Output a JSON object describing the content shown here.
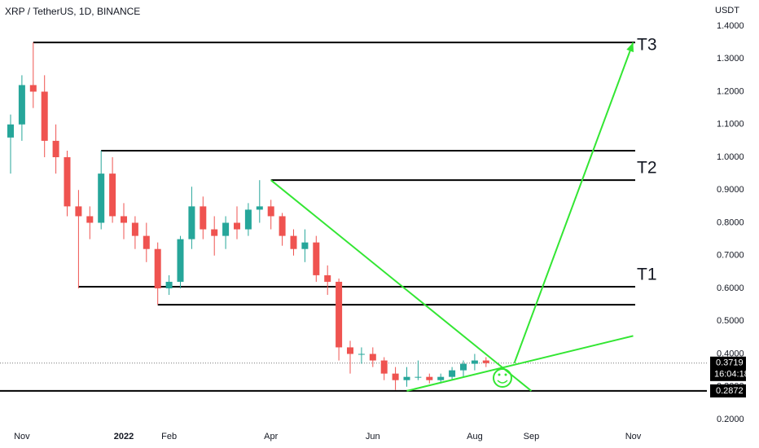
{
  "chart_data": {
    "type": "candlestick",
    "title": "XRP / TetherUS, 1D, BINANCE",
    "y_axis_title": "USDT",
    "categories": [
      null,
      "Nov",
      null,
      null,
      null,
      null,
      null,
      null,
      null,
      null,
      "2022",
      null,
      null,
      null,
      "Feb",
      null,
      null,
      null,
      null,
      null,
      null,
      null,
      null,
      "Apr",
      null,
      null,
      null,
      null,
      null,
      null,
      null,
      null,
      "Jun",
      null,
      null,
      null,
      null,
      null,
      null,
      null,
      null,
      "Aug",
      null,
      null,
      null,
      null,
      "Sep",
      null,
      null,
      null,
      null,
      null,
      null,
      null,
      null,
      "Nov",
      null,
      null,
      null,
      null,
      null
    ],
    "open": [
      1.06,
      1.1,
      1.22,
      1.2,
      1.05,
      1.0,
      0.85,
      0.82,
      0.8,
      0.95,
      0.82,
      0.8,
      0.76,
      0.72,
      0.6,
      0.62,
      0.75,
      0.85,
      0.78,
      0.76,
      0.8,
      0.78,
      0.84,
      0.85,
      0.82,
      0.76,
      0.72,
      0.74,
      0.64,
      0.62,
      0.42,
      0.4,
      0.4,
      0.38,
      0.34,
      0.32,
      0.33,
      0.33,
      0.32,
      0.33,
      0.35,
      0.37,
      0.38,
      null,
      null,
      null,
      null,
      null,
      null,
      null,
      null,
      null,
      null,
      null,
      null,
      null,
      null,
      null,
      null,
      null,
      null
    ],
    "high": [
      1.13,
      1.25,
      1.35,
      1.25,
      1.1,
      1.02,
      0.9,
      0.85,
      1.02,
      1.0,
      0.86,
      0.82,
      0.8,
      0.74,
      0.64,
      0.76,
      0.91,
      0.88,
      0.82,
      0.82,
      0.85,
      0.86,
      0.93,
      0.87,
      0.83,
      0.78,
      0.78,
      0.76,
      0.67,
      0.63,
      0.44,
      0.42,
      0.42,
      0.39,
      0.36,
      0.36,
      0.38,
      0.34,
      0.34,
      0.36,
      0.38,
      0.4,
      0.39,
      null,
      null,
      null,
      null,
      null,
      null,
      null,
      null,
      null,
      null,
      null,
      null,
      null,
      null,
      null,
      null,
      null,
      null
    ],
    "low": [
      0.95,
      1.05,
      1.15,
      1.0,
      0.95,
      0.82,
      0.6,
      0.75,
      0.78,
      0.8,
      0.75,
      0.72,
      0.68,
      0.55,
      0.58,
      0.6,
      0.72,
      0.75,
      0.7,
      0.72,
      0.75,
      0.76,
      0.8,
      0.78,
      0.73,
      0.7,
      0.68,
      0.62,
      0.58,
      0.38,
      0.34,
      0.37,
      0.36,
      0.32,
      0.29,
      0.3,
      0.32,
      0.31,
      0.31,
      0.32,
      0.33,
      0.35,
      0.36,
      null,
      null,
      null,
      null,
      null,
      null,
      null,
      null,
      null,
      null,
      null,
      null,
      null,
      null,
      null,
      null,
      null,
      null
    ],
    "close": [
      1.1,
      1.22,
      1.2,
      1.05,
      1.0,
      0.85,
      0.82,
      0.8,
      0.95,
      0.82,
      0.8,
      0.76,
      0.72,
      0.6,
      0.62,
      0.75,
      0.85,
      0.78,
      0.76,
      0.8,
      0.78,
      0.84,
      0.85,
      0.82,
      0.76,
      0.72,
      0.74,
      0.64,
      0.62,
      0.42,
      0.4,
      0.4,
      0.38,
      0.34,
      0.32,
      0.33,
      0.33,
      0.32,
      0.33,
      0.35,
      0.37,
      0.38,
      0.3719,
      null,
      null,
      null,
      null,
      null,
      null,
      null,
      null,
      null,
      null,
      null,
      null,
      null,
      null,
      null,
      null,
      null,
      null
    ],
    "up_color": "#26a69a",
    "down_color": "#ef5350",
    "ylim": [
      0.2,
      1.4
    ],
    "yticks": [
      {
        "value": 1.4,
        "label": "1.4000"
      },
      {
        "value": 1.3,
        "label": "1.3000"
      },
      {
        "value": 1.2,
        "label": "1.2000"
      },
      {
        "value": 1.1,
        "label": "1.1000"
      },
      {
        "value": 1.0,
        "label": "1.0000"
      },
      {
        "value": 0.9,
        "label": "0.9000"
      },
      {
        "value": 0.8,
        "label": "0.8000"
      },
      {
        "value": 0.7,
        "label": "0.7000"
      },
      {
        "value": 0.6,
        "label": "0.6000"
      },
      {
        "value": 0.5,
        "label": "0.5000"
      },
      {
        "value": 0.4,
        "label": "0.4000"
      },
      {
        "value": 0.3,
        "label": "0.3000"
      },
      {
        "value": 0.2,
        "label": "0.2000"
      }
    ],
    "levels": [
      {
        "value": 1.35,
        "start": 2,
        "label": "T3"
      },
      {
        "value": 1.02,
        "start": 8
      },
      {
        "value": 0.93,
        "start": 23,
        "label": "T2"
      },
      {
        "value": 0.605,
        "start": 6,
        "label": "T1"
      },
      {
        "value": 0.55,
        "start": 13
      },
      {
        "value": 0.2872,
        "start": 0,
        "price_label": "0.2872"
      }
    ],
    "trendlines": [
      {
        "from": {
          "x": 23,
          "y": 0.93
        },
        "to": {
          "x": 46,
          "y": 0.2872
        }
      },
      {
        "from": {
          "x": 35,
          "y": 0.2872
        },
        "to": {
          "x": 55,
          "y": 0.455
        }
      },
      {
        "from": {
          "x": 44.5,
          "y": 0.3719
        },
        "to": {
          "x": 55,
          "y": 1.35
        },
        "arrow": true
      }
    ],
    "trend_color": "#33e633",
    "last_price": {
      "value": 0.3719,
      "label": "0.3719"
    },
    "countdown": "16:04:18"
  }
}
